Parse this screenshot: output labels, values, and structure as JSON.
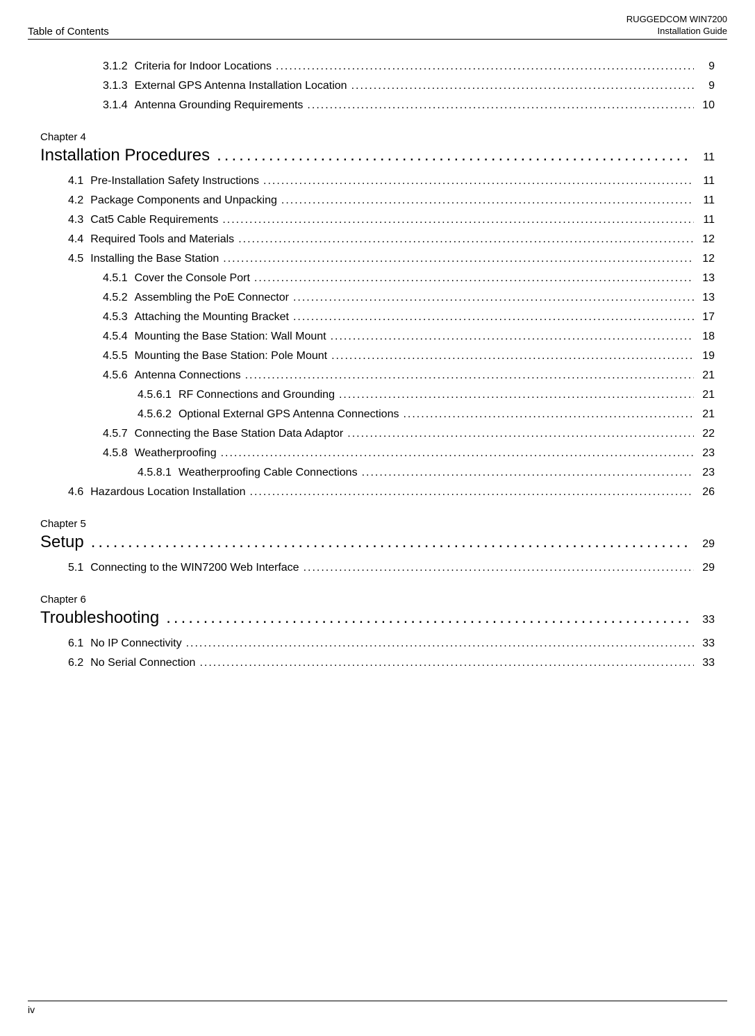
{
  "header": {
    "left": "Table of Contents",
    "right_line1": "RUGGEDCOM WIN7200",
    "right_line2": "Installation Guide"
  },
  "footer": {
    "page_number": "iv"
  },
  "pre_entries": [
    {
      "number": "3.1.2",
      "title": "Criteria for Indoor Locations",
      "page": "9",
      "indent": 2
    },
    {
      "number": "3.1.3",
      "title": "External GPS Antenna Installation Location",
      "page": "9",
      "indent": 2
    },
    {
      "number": "3.1.4",
      "title": "Antenna Grounding Requirements",
      "page": "10",
      "indent": 2
    }
  ],
  "chapters": [
    {
      "label": "Chapter 4",
      "title": "Installation Procedures",
      "page": "11",
      "entries": [
        {
          "number": "4.1",
          "title": "Pre-Installation Safety Instructions",
          "page": "11",
          "indent": 1
        },
        {
          "number": "4.2",
          "title": "Package Components and Unpacking",
          "page": "11",
          "indent": 1
        },
        {
          "number": "4.3",
          "title": "Cat5 Cable Requirements",
          "page": "11",
          "indent": 1
        },
        {
          "number": "4.4",
          "title": "Required Tools and Materials",
          "page": "12",
          "indent": 1
        },
        {
          "number": "4.5",
          "title": "Installing the Base Station",
          "page": "12",
          "indent": 1
        },
        {
          "number": "4.5.1",
          "title": "Cover the Console Port",
          "page": "13",
          "indent": 2
        },
        {
          "number": "4.5.2",
          "title": "Assembling the PoE Connector",
          "page": "13",
          "indent": 2
        },
        {
          "number": "4.5.3",
          "title": "Attaching the Mounting Bracket",
          "page": "17",
          "indent": 2
        },
        {
          "number": "4.5.4",
          "title": "Mounting the Base Station: Wall Mount",
          "page": "18",
          "indent": 2
        },
        {
          "number": "4.5.5",
          "title": "Mounting the Base Station: Pole Mount",
          "page": "19",
          "indent": 2
        },
        {
          "number": "4.5.6",
          "title": "Antenna Connections",
          "page": "21",
          "indent": 2
        },
        {
          "number": "4.5.6.1",
          "title": "RF Connections and Grounding",
          "page": "21",
          "indent": 3
        },
        {
          "number": "4.5.6.2",
          "title": "Optional External GPS Antenna Connections",
          "page": "21",
          "indent": 3
        },
        {
          "number": "4.5.7",
          "title": "Connecting the Base Station Data Adaptor",
          "page": "22",
          "indent": 2
        },
        {
          "number": "4.5.8",
          "title": "Weatherproofing",
          "page": "23",
          "indent": 2
        },
        {
          "number": "4.5.8.1",
          "title": "Weatherproofing Cable Connections",
          "page": "23",
          "indent": 3
        },
        {
          "number": "4.6",
          "title": "Hazardous Location Installation",
          "page": "26",
          "indent": 1
        }
      ]
    },
    {
      "label": "Chapter 5",
      "title": "Setup",
      "page": "29",
      "entries": [
        {
          "number": "5.1",
          "title": "Connecting to the WIN7200 Web Interface",
          "page": "29",
          "indent": 1
        }
      ]
    },
    {
      "label": "Chapter 6",
      "title": "Troubleshooting",
      "page": "33",
      "entries": [
        {
          "number": "6.1",
          "title": "No IP Connectivity",
          "page": "33",
          "indent": 1
        },
        {
          "number": "6.2",
          "title": "No Serial Connection",
          "page": "33",
          "indent": 1
        }
      ]
    }
  ]
}
